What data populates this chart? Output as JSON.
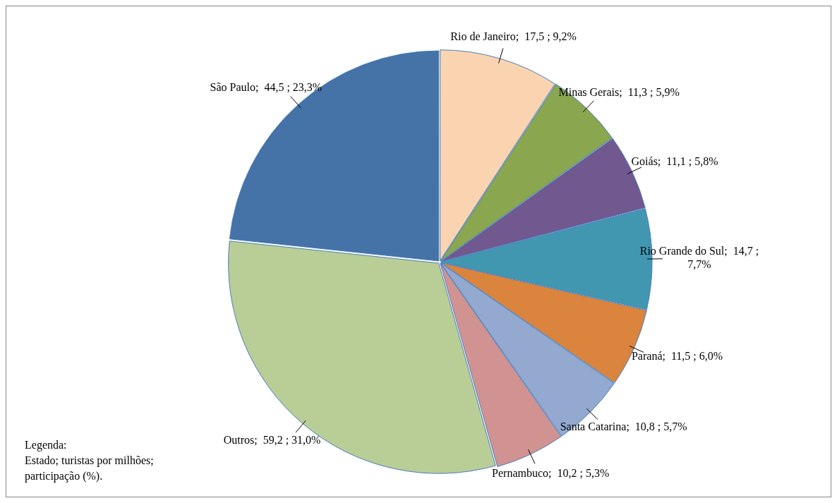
{
  "chart_data": {
    "type": "pie",
    "categories": [
      "Rio de Janeiro",
      "Minas Gerais",
      "Goiás",
      "Rio Grande do Sul",
      "Paraná",
      "Santa Catarina",
      "Pernambuco",
      "Outros",
      "São Paulo"
    ],
    "values": [
      17.5,
      11.3,
      11.1,
      14.7,
      11.5,
      10.8,
      10.2,
      59.2,
      44.5
    ],
    "value_labels": [
      ";  17,5 ; 9,2%",
      ";  11,3 ; 5,9%",
      ";  11,1 ; 5,8%",
      ";  14,7 ; 7,7%",
      ";  11,5 ; 6,0%",
      ";  10,8 ; 5,7%",
      ";  10,2 ; 5,3%",
      ";  59,2 ; 31,0%",
      ";  44,5 ; 23,3%"
    ],
    "colors": [
      "#fad4b0",
      "#8aa64f",
      "#71588f",
      "#4197b0",
      "#db843d",
      "#93a9cf",
      "#d19392",
      "#b9cd96",
      "#4572a7"
    ],
    "legend": false,
    "annotations": [
      "Legenda:\nEstado; turistas por milhões;\nparticipação (%)."
    ]
  }
}
